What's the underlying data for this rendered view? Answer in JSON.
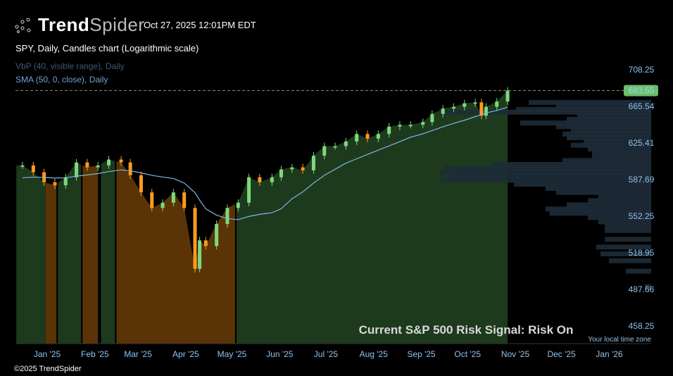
{
  "header": {
    "brand_bold": "Trend",
    "brand_light": "Spider",
    "timestamp": "Oct 27, 2025 12:01PM EDT"
  },
  "legend": {
    "title": "SPY, Daily, Candles chart (Logarithmic scale)",
    "vbp": "VbP (40, visible range), Daily",
    "sma": "SMA (50, 0, close), Daily"
  },
  "footer": {
    "copyright": "©2025 TrendSpider",
    "timezone": "Your local time zone"
  },
  "colors": {
    "up": "#7dd87d",
    "down": "#ff9a1f",
    "risk_on": "#1d3a1d",
    "risk_off": "#5a3406",
    "sma": "#7fb6e0",
    "vbp": "#1e2c38",
    "last_price": "#6abf69"
  },
  "chart_data": {
    "type": "candlestick",
    "title": "SPY, Daily, Candles chart (Logarithmic scale)",
    "annotation": "Current S&P 500 Risk Signal: Risk On",
    "scale": "log",
    "ylim": [
      458.25,
      708.25
    ],
    "y_ticks": [
      "708.25",
      "665.54",
      "625.41",
      "587.69",
      "552.25",
      "518.95",
      "487.66",
      "458.25"
    ],
    "last_price": "683.55",
    "x_ticks": [
      {
        "label": "Jan '25",
        "day": 0
      },
      {
        "label": "Feb '25",
        "day": 31
      },
      {
        "label": "Mar '25",
        "day": 59
      },
      {
        "label": "Apr '25",
        "day": 90
      },
      {
        "label": "May '25",
        "day": 120
      },
      {
        "label": "Jun '25",
        "day": 151
      },
      {
        "label": "Jul '25",
        "day": 181
      },
      {
        "label": "Aug '25",
        "day": 212
      },
      {
        "label": "Sep '25",
        "day": 243
      },
      {
        "label": "Oct '25",
        "day": 273
      },
      {
        "label": "Nov '25",
        "day": 304
      },
      {
        "label": "Dec '25",
        "day": 334
      },
      {
        "label": "Jan '26",
        "day": 365
      }
    ],
    "days": [
      -16,
      -9,
      -2,
      5,
      12,
      19,
      26,
      33,
      40,
      48,
      54,
      61,
      68,
      75,
      82,
      89,
      96,
      99,
      103,
      110,
      117,
      124,
      131,
      138,
      146,
      152,
      159,
      166,
      173,
      180,
      187,
      194,
      201,
      208,
      215,
      222,
      229,
      236,
      244,
      250,
      257,
      264,
      271,
      278,
      282,
      285,
      292,
      299
    ],
    "closes": [
      602,
      595,
      585,
      582,
      590,
      605,
      600,
      602,
      608,
      605,
      592,
      575,
      560,
      565,
      575,
      560,
      505,
      530,
      525,
      545,
      560,
      565,
      590,
      585,
      590,
      598,
      600,
      597,
      612,
      622,
      622,
      627,
      635,
      630,
      635,
      643,
      645,
      645,
      648,
      657,
      663,
      665,
      669,
      670,
      655,
      665,
      671,
      683.55
    ],
    "regimes": [
      {
        "from": -20,
        "to": -1,
        "signal": "on"
      },
      {
        "from": -1,
        "to": 6,
        "signal": "off"
      },
      {
        "from": 7,
        "to": 22,
        "signal": "on"
      },
      {
        "from": 23,
        "to": 33,
        "signal": "off"
      },
      {
        "from": 35,
        "to": 44,
        "signal": "on"
      },
      {
        "from": 45,
        "to": 122,
        "signal": "off"
      },
      {
        "from": 123,
        "to": 299,
        "signal": "on"
      }
    ],
    "vbp": {
      "bins": [
        [
          670,
          0.58
        ],
        [
          666,
          0.45
        ],
        [
          662,
          0.64
        ],
        [
          659,
          1.0
        ],
        [
          655,
          0.35
        ],
        [
          651,
          0.4
        ],
        [
          647,
          0.62
        ],
        [
          643,
          0.45
        ],
        [
          639,
          0.38
        ],
        [
          635,
          0.42
        ],
        [
          631,
          0.4
        ],
        [
          627,
          0.32
        ],
        [
          623,
          0.38
        ],
        [
          619,
          0.3
        ],
        [
          615,
          0.28
        ],
        [
          611,
          0.28
        ],
        [
          607,
          0.42
        ],
        [
          603,
          0.75
        ],
        [
          599,
          0.98
        ],
        [
          595,
          1.0
        ],
        [
          591,
          0.95
        ],
        [
          587,
          1.0
        ],
        [
          583,
          0.65
        ],
        [
          579,
          0.5
        ],
        [
          575,
          0.45
        ],
        [
          571,
          0.25
        ],
        [
          567,
          0.3
        ],
        [
          563,
          0.4
        ],
        [
          559,
          0.5
        ],
        [
          555,
          0.48
        ],
        [
          551,
          0.3
        ],
        [
          547,
          0.25
        ],
        [
          543,
          0.22
        ],
        [
          539,
          0.22
        ],
        [
          531,
          0.22
        ],
        [
          524,
          0.26
        ],
        [
          518,
          0.24
        ],
        [
          512,
          0.2
        ],
        [
          503,
          0.12
        ],
        [
          490,
          0.03
        ]
      ]
    }
  }
}
